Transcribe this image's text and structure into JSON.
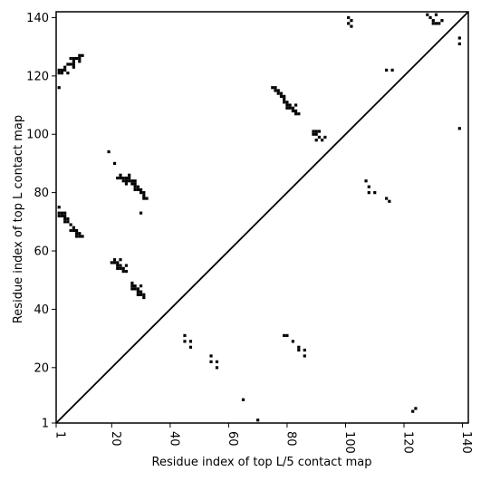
{
  "chart_data": {
    "type": "heatmap",
    "xlabel": "Residue index of top L/5 contact map",
    "ylabel": "Residue index of top L contact map",
    "xlim": [
      1,
      142
    ],
    "ylim": [
      1,
      142
    ],
    "xticks": [
      1,
      20,
      40,
      60,
      80,
      100,
      120,
      140
    ],
    "yticks": [
      1,
      20,
      40,
      60,
      80,
      100,
      120,
      140
    ],
    "diagonal": true,
    "colors": {
      "contact": "#000000",
      "background": "#ffffff",
      "diagonal": "#000000"
    },
    "lower_triangle_contacts": [
      [
        123,
        5
      ],
      [
        124,
        6
      ],
      [
        70,
        2
      ],
      [
        65,
        9
      ],
      [
        45,
        31
      ],
      [
        45,
        29
      ],
      [
        47,
        29
      ],
      [
        47,
        27
      ],
      [
        54,
        24
      ],
      [
        54,
        22
      ],
      [
        56,
        22
      ],
      [
        56,
        20
      ],
      [
        79,
        31
      ],
      [
        80,
        31
      ],
      [
        82,
        29
      ],
      [
        84,
        27
      ],
      [
        84,
        26
      ],
      [
        86,
        26
      ],
      [
        86,
        24
      ]
    ],
    "upper_triangle_contacts": [
      [
        2,
        116
      ],
      [
        2,
        121
      ],
      [
        2,
        122
      ],
      [
        3,
        121
      ],
      [
        3,
        122
      ],
      [
        4,
        122
      ],
      [
        4,
        123
      ],
      [
        5,
        121
      ],
      [
        5,
        124
      ],
      [
        6,
        124
      ],
      [
        6,
        126
      ],
      [
        7,
        123
      ],
      [
        7,
        124
      ],
      [
        7,
        125
      ],
      [
        7,
        126
      ],
      [
        8,
        126
      ],
      [
        9,
        125
      ],
      [
        9,
        126
      ],
      [
        9,
        127
      ],
      [
        10,
        127
      ],
      [
        2,
        72
      ],
      [
        2,
        73
      ],
      [
        2,
        75
      ],
      [
        3,
        72
      ],
      [
        3,
        73
      ],
      [
        4,
        70
      ],
      [
        4,
        71
      ],
      [
        4,
        72
      ],
      [
        4,
        73
      ],
      [
        5,
        70
      ],
      [
        5,
        71
      ],
      [
        6,
        69
      ],
      [
        6,
        67
      ],
      [
        7,
        67
      ],
      [
        7,
        68
      ],
      [
        8,
        65
      ],
      [
        8,
        66
      ],
      [
        8,
        67
      ],
      [
        9,
        65
      ],
      [
        9,
        66
      ],
      [
        10,
        65
      ],
      [
        19,
        94
      ],
      [
        21,
        90
      ],
      [
        22,
        85
      ],
      [
        23,
        85
      ],
      [
        23,
        86
      ],
      [
        24,
        84
      ],
      [
        24,
        85
      ],
      [
        25,
        83
      ],
      [
        25,
        84
      ],
      [
        25,
        85
      ],
      [
        26,
        84
      ],
      [
        26,
        85
      ],
      [
        26,
        86
      ],
      [
        27,
        83
      ],
      [
        27,
        84
      ],
      [
        28,
        81
      ],
      [
        28,
        82
      ],
      [
        28,
        83
      ],
      [
        28,
        84
      ],
      [
        29,
        81
      ],
      [
        29,
        82
      ],
      [
        30,
        81
      ],
      [
        30,
        80
      ],
      [
        30,
        73
      ],
      [
        31,
        78
      ],
      [
        31,
        79
      ],
      [
        31,
        80
      ],
      [
        32,
        78
      ],
      [
        20,
        56
      ],
      [
        21,
        56
      ],
      [
        21,
        57
      ],
      [
        22,
        54
      ],
      [
        22,
        55
      ],
      [
        22,
        56
      ],
      [
        23,
        54
      ],
      [
        23,
        55
      ],
      [
        23,
        57
      ],
      [
        24,
        53
      ],
      [
        24,
        54
      ],
      [
        25,
        53
      ],
      [
        25,
        55
      ],
      [
        27,
        47
      ],
      [
        27,
        48
      ],
      [
        27,
        49
      ],
      [
        28,
        47
      ],
      [
        28,
        48
      ],
      [
        29,
        45
      ],
      [
        29,
        46
      ],
      [
        29,
        47
      ],
      [
        30,
        45
      ],
      [
        30,
        46
      ],
      [
        30,
        48
      ],
      [
        31,
        44
      ],
      [
        31,
        45
      ],
      [
        75,
        116
      ],
      [
        76,
        115
      ],
      [
        76,
        116
      ],
      [
        77,
        114
      ],
      [
        77,
        115
      ],
      [
        78,
        113
      ],
      [
        78,
        114
      ],
      [
        79,
        111
      ],
      [
        79,
        112
      ],
      [
        79,
        113
      ],
      [
        80,
        109
      ],
      [
        80,
        110
      ],
      [
        80,
        111
      ],
      [
        81,
        109
      ],
      [
        81,
        110
      ],
      [
        82,
        108
      ],
      [
        82,
        109
      ],
      [
        83,
        107
      ],
      [
        83,
        108
      ],
      [
        83,
        110
      ],
      [
        84,
        107
      ],
      [
        89,
        100
      ],
      [
        89,
        101
      ],
      [
        90,
        98
      ],
      [
        90,
        100
      ],
      [
        90,
        101
      ],
      [
        91,
        99
      ],
      [
        91,
        101
      ],
      [
        92,
        98
      ],
      [
        93,
        99
      ],
      [
        101,
        138
      ],
      [
        101,
        140
      ],
      [
        102,
        137
      ],
      [
        102,
        139
      ],
      [
        107,
        84
      ],
      [
        108,
        80
      ],
      [
        108,
        82
      ],
      [
        110,
        80
      ],
      [
        114,
        78
      ],
      [
        115,
        77
      ],
      [
        114,
        122
      ],
      [
        116,
        122
      ],
      [
        128,
        141
      ],
      [
        129,
        140
      ],
      [
        130,
        138
      ],
      [
        130,
        139
      ],
      [
        131,
        138
      ],
      [
        131,
        141
      ],
      [
        132,
        138
      ],
      [
        133,
        139
      ],
      [
        139,
        102
      ],
      [
        139,
        131
      ],
      [
        139,
        133
      ]
    ]
  }
}
